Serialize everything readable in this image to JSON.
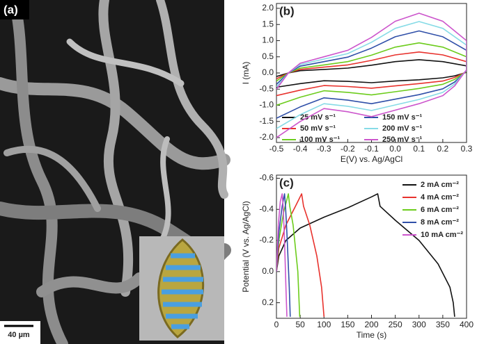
{
  "image": {
    "label": "(a)",
    "scale_bar": "40 µm"
  },
  "chart_data": [
    {
      "type": "line",
      "panel_label": "(b)",
      "x_label": "E(V) vs. Ag/AgCl",
      "y_label": "I (mA)",
      "xlim": [
        -0.5,
        0.3
      ],
      "xticks": [
        -0.5,
        -0.4,
        -0.3,
        -0.2,
        -0.1,
        {
          "value": 0,
          "label": "0.0"
        },
        0.1,
        0.2,
        0.3
      ],
      "ylim": [
        -2.15,
        2.15
      ],
      "yticks": [
        {
          "value": 2,
          "label": "2.0"
        },
        1.5,
        {
          "value": 1,
          "label": "1.0"
        },
        0.5,
        {
          "value": 0,
          "label": "0.0"
        },
        -0.5,
        {
          "value": -1,
          "label": "-1.0"
        },
        -1.5,
        {
          "value": -2,
          "label": "-2.0"
        }
      ],
      "legend": "lower left",
      "series": [
        {
          "name": "25 mV s⁻¹",
          "color": "#111111",
          "x": [
            -0.5,
            -0.45,
            -0.4,
            -0.3,
            -0.2,
            -0.1,
            0,
            0.1,
            0.2,
            0.3,
            0.3,
            0.25,
            0.2,
            0.1,
            0,
            -0.1,
            -0.2,
            -0.3,
            -0.4,
            -0.5
          ],
          "values": [
            -0.11,
            0,
            0.07,
            0.11,
            0.15,
            0.24,
            0.35,
            0.41,
            0.35,
            0.22,
            0.02,
            -0.09,
            -0.15,
            -0.21,
            -0.25,
            -0.3,
            -0.26,
            -0.24,
            -0.33,
            -0.44
          ]
        },
        {
          "name": "50 mV s⁻¹",
          "color": "#e8322d",
          "x": [
            -0.5,
            -0.45,
            -0.4,
            -0.3,
            -0.2,
            -0.1,
            0,
            0.1,
            0.2,
            0.3,
            0.3,
            0.25,
            0.2,
            0.1,
            0,
            -0.1,
            -0.2,
            -0.3,
            -0.4,
            -0.5
          ],
          "values": [
            -0.18,
            0,
            0.11,
            0.18,
            0.25,
            0.39,
            0.56,
            0.65,
            0.56,
            0.35,
            0.04,
            -0.14,
            -0.25,
            -0.33,
            -0.4,
            -0.47,
            -0.42,
            -0.39,
            -0.53,
            -0.7
          ]
        },
        {
          "name": "100 mV s⁻¹",
          "color": "#6ccc1c",
          "x": [
            -0.5,
            -0.45,
            -0.4,
            -0.3,
            -0.2,
            -0.1,
            0,
            0.1,
            0.2,
            0.3,
            0.3,
            0.25,
            0.2,
            0.1,
            0,
            -0.1,
            -0.2,
            -0.3,
            -0.4,
            -0.5
          ],
          "values": [
            -0.25,
            0,
            0.15,
            0.25,
            0.35,
            0.55,
            0.8,
            0.93,
            0.8,
            0.5,
            0.05,
            -0.2,
            -0.35,
            -0.48,
            -0.58,
            -0.68,
            -0.6,
            -0.55,
            -0.75,
            -1.0
          ]
        },
        {
          "name": "150 mV s⁻¹",
          "color": "#2f4fa8",
          "x": [
            -0.5,
            -0.45,
            -0.4,
            -0.3,
            -0.2,
            -0.1,
            0,
            0.1,
            0.2,
            0.3,
            0.3,
            0.25,
            0.2,
            0.1,
            0,
            -0.1,
            -0.2,
            -0.3,
            -0.4,
            -0.5
          ],
          "values": [
            -0.35,
            0,
            0.21,
            0.35,
            0.49,
            0.77,
            1.12,
            1.3,
            1.12,
            0.7,
            0.07,
            -0.28,
            -0.49,
            -0.67,
            -0.81,
            -0.95,
            -0.84,
            -0.77,
            -1.05,
            -1.4
          ]
        },
        {
          "name": "200 mV s⁻¹",
          "color": "#86dbe6",
          "x": [
            -0.5,
            -0.45,
            -0.4,
            -0.3,
            -0.2,
            -0.1,
            0,
            0.1,
            0.2,
            0.3,
            0.3,
            0.25,
            0.2,
            0.1,
            0,
            -0.1,
            -0.2,
            -0.3,
            -0.4,
            -0.5
          ],
          "values": [
            -0.43,
            0,
            0.26,
            0.43,
            0.6,
            0.95,
            1.38,
            1.59,
            1.38,
            0.86,
            0.09,
            -0.34,
            -0.6,
            -0.82,
            -0.99,
            -1.16,
            -1.03,
            -0.95,
            -1.29,
            -1.72
          ]
        },
        {
          "name": "250 mV s⁻¹",
          "color": "#cc55cc",
          "x": [
            -0.5,
            -0.45,
            -0.4,
            -0.3,
            -0.2,
            -0.1,
            0,
            0.1,
            0.2,
            0.3,
            0.3,
            0.25,
            0.2,
            0.1,
            0,
            -0.1,
            -0.2,
            -0.3,
            -0.4,
            -0.5
          ],
          "values": [
            -0.5,
            0,
            0.3,
            0.5,
            0.7,
            1.1,
            1.6,
            1.85,
            1.6,
            1,
            0.1,
            -0.4,
            -0.7,
            -0.95,
            -1.15,
            -1.35,
            -1.2,
            -1.1,
            -1.5,
            -2
          ]
        }
      ]
    },
    {
      "type": "line",
      "panel_label": "(c)",
      "x_label": "Time (s)",
      "y_label": "Potential (V vs. Ag/AgCl)",
      "xlim": [
        0,
        400
      ],
      "xticks": [
        0,
        50,
        100,
        150,
        200,
        250,
        300,
        350,
        400
      ],
      "ylim": [
        -0.62,
        0.3
      ],
      "y_reversed": true,
      "yticks": [
        -0.6,
        -0.4,
        -0.2,
        {
          "value": 0,
          "label": "0.0"
        },
        0.2
      ],
      "legend": "upper right",
      "series": [
        {
          "name": "2 mA cm⁻²",
          "color": "#111111",
          "x": [
            0,
            5,
            20,
            50,
            100,
            150,
            200,
            213,
            218,
            250,
            300,
            340,
            365,
            372,
            375
          ],
          "values": [
            0,
            -0.1,
            -0.2,
            -0.28,
            -0.35,
            -0.41,
            -0.48,
            -0.5,
            -0.42,
            -0.33,
            -0.2,
            -0.05,
            0.1,
            0.2,
            0.29
          ]
        },
        {
          "name": "4 mA cm⁻²",
          "color": "#e8322d",
          "x": [
            0,
            5,
            20,
            40,
            53,
            57,
            70,
            85,
            95,
            100
          ],
          "values": [
            0,
            -0.15,
            -0.3,
            -0.42,
            -0.5,
            -0.42,
            -0.3,
            -0.1,
            0.1,
            0.29
          ]
        },
        {
          "name": "6 mA cm⁻²",
          "color": "#6ccc1c",
          "x": [
            0,
            5,
            15,
            25,
            28,
            35,
            45,
            49
          ],
          "values": [
            0,
            -0.2,
            -0.38,
            -0.5,
            -0.42,
            -0.3,
            0,
            0.29
          ]
        },
        {
          "name": "8 mA cm⁻²",
          "color": "#2f4fa8",
          "x": [
            0,
            5,
            12,
            17,
            19,
            22,
            27,
            29
          ],
          "values": [
            0,
            -0.25,
            -0.42,
            -0.5,
            -0.42,
            -0.25,
            0.1,
            0.29
          ]
        },
        {
          "name": "10 mA cm⁻²",
          "color": "#cc55cc",
          "x": [
            0,
            4,
            8,
            12,
            14,
            17,
            20,
            22
          ],
          "values": [
            0,
            -0.3,
            -0.45,
            -0.5,
            -0.42,
            -0.2,
            0.1,
            0.29
          ]
        }
      ]
    }
  ]
}
